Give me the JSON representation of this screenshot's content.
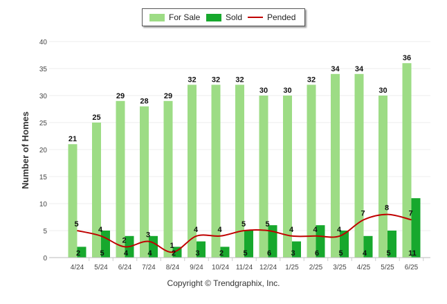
{
  "chart_data": {
    "type": "bar",
    "ylabel": "Number of Homes",
    "ylim": [
      0,
      40
    ],
    "yticks": [
      0,
      5,
      10,
      15,
      20,
      25,
      30,
      35,
      40
    ],
    "grid": true,
    "legend_placement": "top-center",
    "categories": [
      "4/24",
      "5/24",
      "6/24",
      "7/24",
      "8/24",
      "9/24",
      "10/24",
      "11/24",
      "12/24",
      "1/25",
      "2/25",
      "3/25",
      "4/25",
      "5/25",
      "6/25"
    ],
    "series": [
      {
        "name": "For Sale",
        "kind": "bar",
        "color": "#9ddc85",
        "values": [
          21,
          25,
          29,
          28,
          29,
          32,
          32,
          32,
          30,
          30,
          32,
          34,
          34,
          30,
          36
        ]
      },
      {
        "name": "Sold",
        "kind": "bar",
        "color": "#17a82d",
        "values": [
          2,
          5,
          4,
          4,
          2,
          3,
          2,
          5,
          6,
          3,
          6,
          5,
          4,
          5,
          11
        ]
      },
      {
        "name": "Pended",
        "kind": "line",
        "color": "#c00000",
        "values": [
          5,
          4,
          2,
          3,
          1,
          4,
          4,
          5,
          5,
          4,
          4,
          4,
          7,
          8,
          7
        ]
      }
    ]
  },
  "copyright": "Copyright © Trendgraphix, Inc."
}
